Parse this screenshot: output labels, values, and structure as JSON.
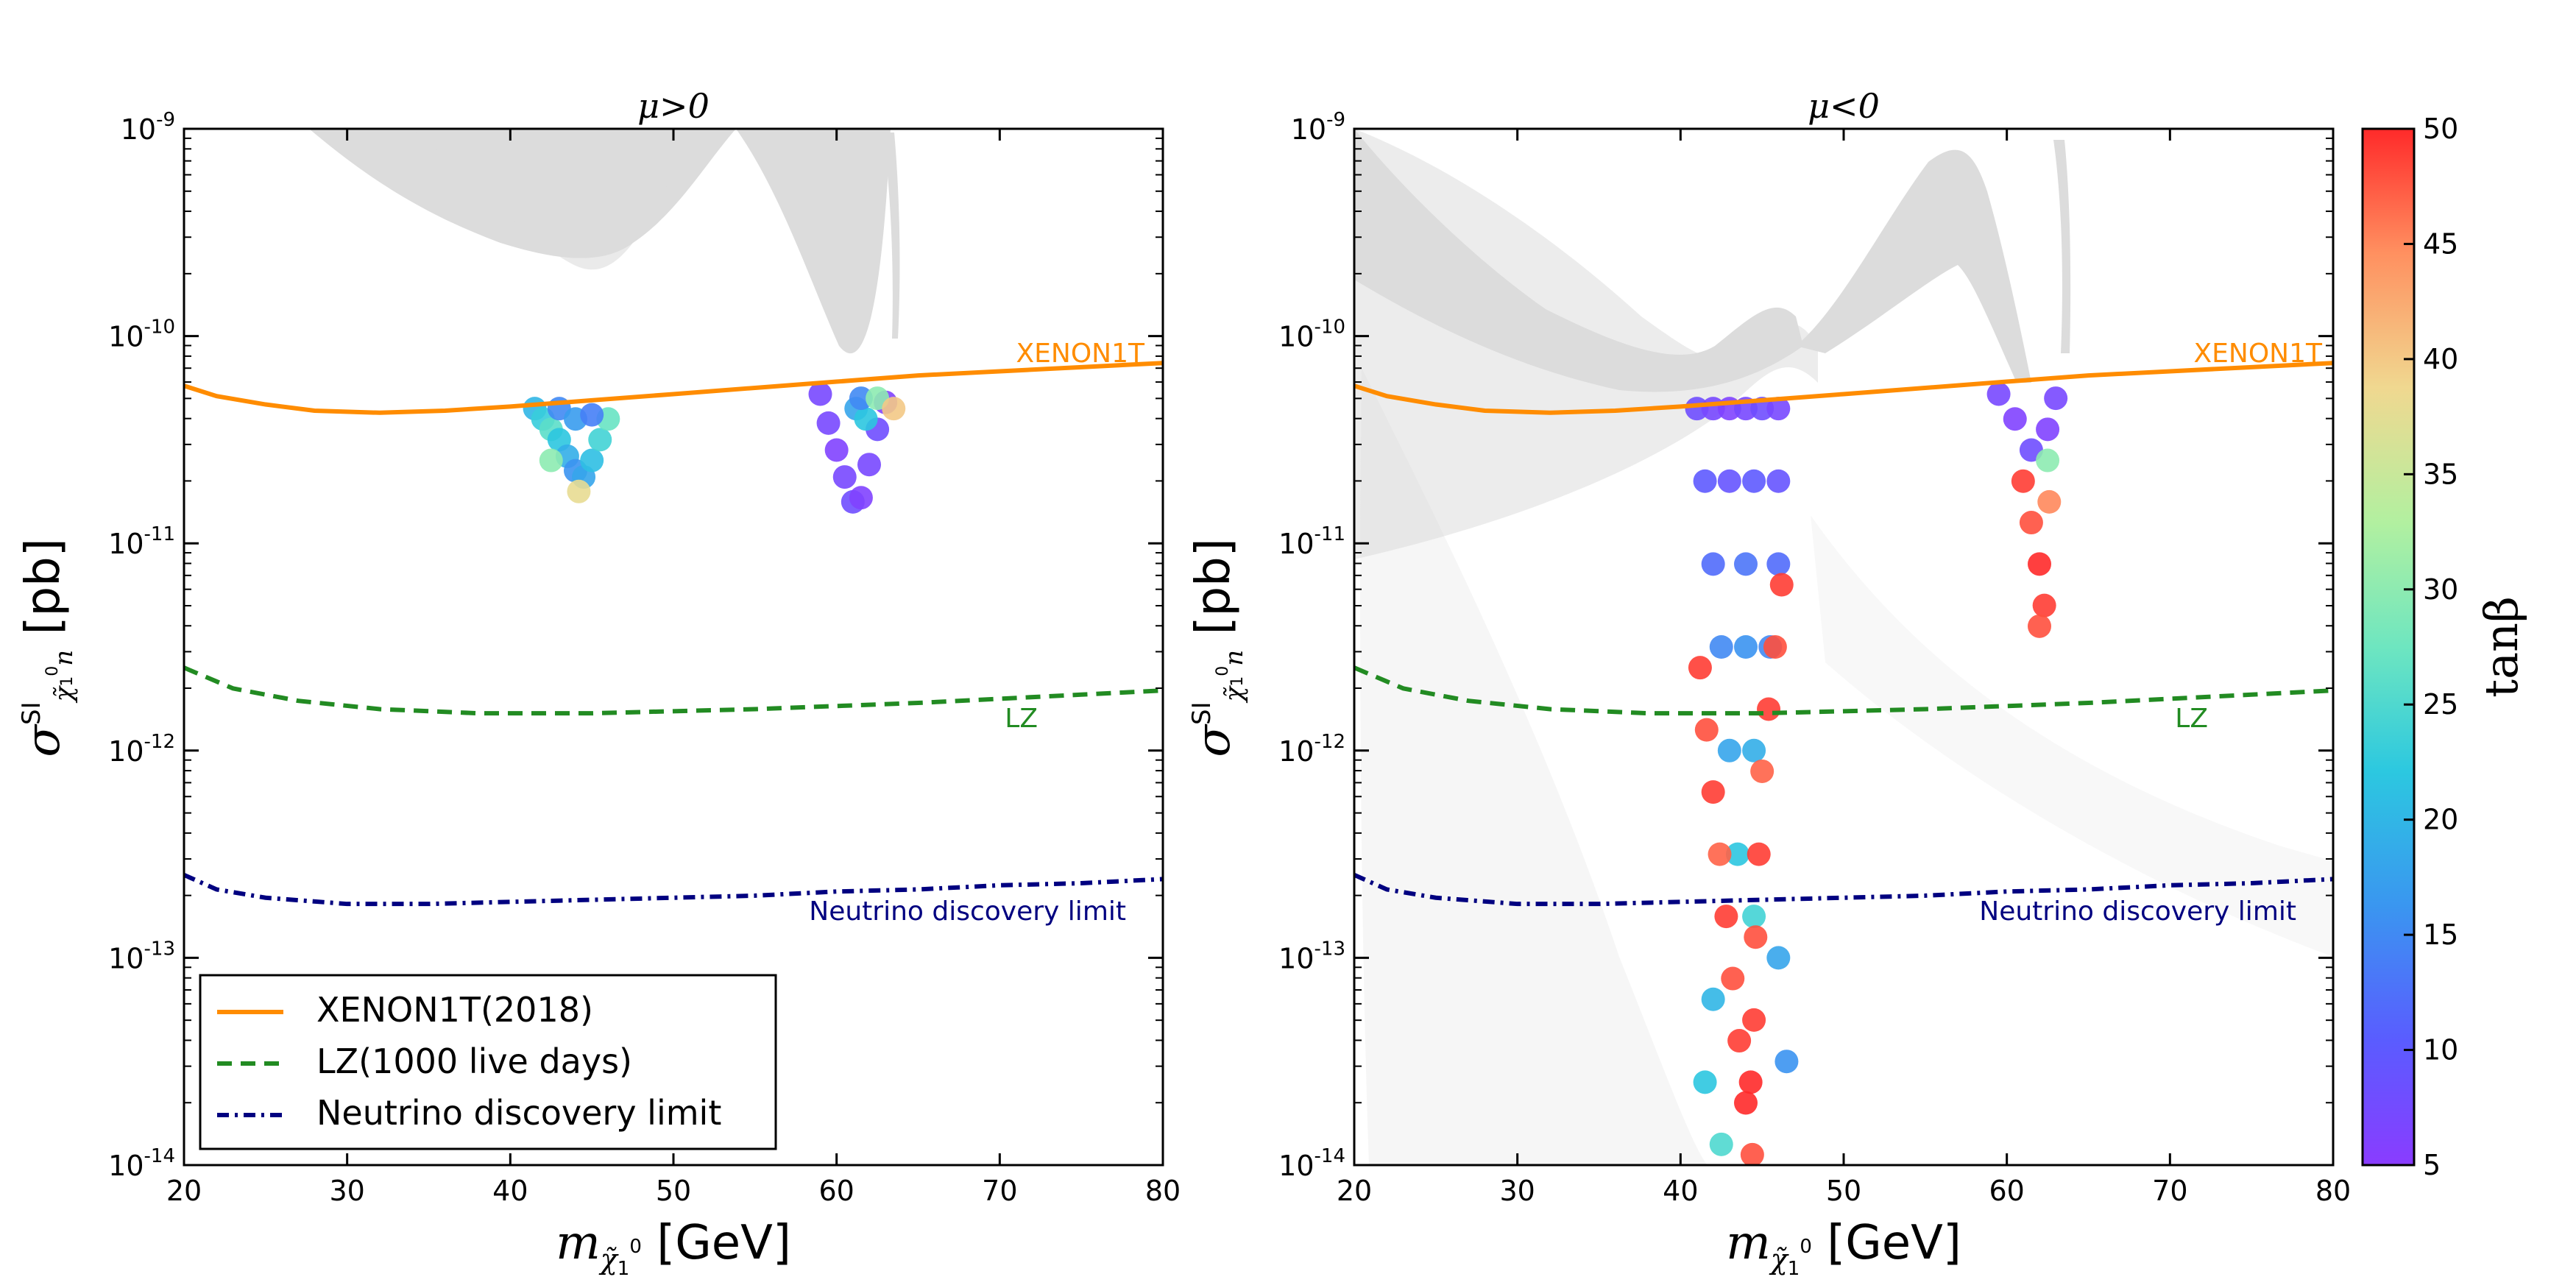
{
  "chart_data": [
    {
      "type": "scatter",
      "title": "μ>0",
      "xlabel": "m_χ̃₁⁰ [GeV]",
      "ylabel": "σ^SI_χ̃₁⁰n [pb]",
      "xlim": [
        20,
        80
      ],
      "ylim_log10": [
        -14,
        -9
      ],
      "x_ticks": [
        "20",
        "30",
        "40",
        "50",
        "60",
        "70",
        "80"
      ],
      "y_ticks": [
        {
          "exp": "-14"
        },
        {
          "exp": "-13"
        },
        {
          "exp": "-12"
        },
        {
          "exp": "-11"
        },
        {
          "exp": "-10"
        },
        {
          "exp": "-9"
        }
      ],
      "limit_curves": [
        {
          "name": "XENON1T(2018)",
          "label": "XENON1T",
          "style": "solid",
          "color": "#ff8c00",
          "x": [
            20,
            22,
            25,
            28,
            32,
            36,
            40,
            45,
            50,
            55,
            60,
            65,
            70,
            75,
            80
          ],
          "log10y": [
            -10.24,
            -10.29,
            -10.33,
            -10.36,
            -10.37,
            -10.36,
            -10.34,
            -10.31,
            -10.28,
            -10.25,
            -10.22,
            -10.19,
            -10.17,
            -10.15,
            -10.13
          ]
        },
        {
          "name": "LZ(1000 live days)",
          "label": "LZ",
          "style": "dashed",
          "color": "#228b22",
          "x": [
            20,
            23,
            27,
            32,
            38,
            45,
            55,
            65,
            75,
            80
          ],
          "log10y": [
            -11.6,
            -11.7,
            -11.76,
            -11.8,
            -11.82,
            -11.82,
            -11.8,
            -11.77,
            -11.73,
            -11.71
          ]
        },
        {
          "name": "Neutrino discovery limit",
          "label": "Neutrino discovery limit",
          "style": "dashdot",
          "color": "#000080",
          "x": [
            20,
            22,
            25,
            30,
            35,
            40,
            45,
            50,
            55,
            60,
            65,
            70,
            75,
            80
          ],
          "log10y": [
            -12.6,
            -12.67,
            -12.71,
            -12.74,
            -12.74,
            -12.73,
            -12.72,
            -12.71,
            -12.7,
            -12.68,
            -12.67,
            -12.65,
            -12.64,
            -12.62
          ]
        }
      ],
      "points": [
        {
          "x": 41.5,
          "log10y": -10.35,
          "tanb": 20
        },
        {
          "x": 42,
          "log10y": -10.4,
          "tanb": 23
        },
        {
          "x": 42.5,
          "log10y": -10.45,
          "tanb": 26
        },
        {
          "x": 43,
          "log10y": -10.5,
          "tanb": 22
        },
        {
          "x": 43.5,
          "log10y": -10.58,
          "tanb": 19
        },
        {
          "x": 44,
          "log10y": -10.65,
          "tanb": 16
        },
        {
          "x": 44.5,
          "log10y": -10.68,
          "tanb": 18
        },
        {
          "x": 45,
          "log10y": -10.6,
          "tanb": 21
        },
        {
          "x": 45.5,
          "log10y": -10.5,
          "tanb": 24
        },
        {
          "x": 46,
          "log10y": -10.4,
          "tanb": 27
        },
        {
          "x": 43,
          "log10y": -10.35,
          "tanb": 15
        },
        {
          "x": 44,
          "log10y": -10.4,
          "tanb": 17
        },
        {
          "x": 45,
          "log10y": -10.38,
          "tanb": 14
        },
        {
          "x": 42.5,
          "log10y": -10.6,
          "tanb": 30
        },
        {
          "x": 44.2,
          "log10y": -10.75,
          "tanb": 38
        },
        {
          "x": 59,
          "log10y": -10.28,
          "tanb": 7
        },
        {
          "x": 59.5,
          "log10y": -10.42,
          "tanb": 7
        },
        {
          "x": 60,
          "log10y": -10.55,
          "tanb": 6
        },
        {
          "x": 60.5,
          "log10y": -10.68,
          "tanb": 7
        },
        {
          "x": 61,
          "log10y": -10.8,
          "tanb": 8
        },
        {
          "x": 61.5,
          "log10y": -10.78,
          "tanb": 6
        },
        {
          "x": 62,
          "log10y": -10.62,
          "tanb": 7
        },
        {
          "x": 62.5,
          "log10y": -10.45,
          "tanb": 8
        },
        {
          "x": 63,
          "log10y": -10.32,
          "tanb": 6
        },
        {
          "x": 61.2,
          "log10y": -10.35,
          "tanb": 18
        },
        {
          "x": 61.8,
          "log10y": -10.4,
          "tanb": 22
        },
        {
          "x": 61.5,
          "log10y": -10.3,
          "tanb": 15
        },
        {
          "x": 62.5,
          "log10y": -10.3,
          "tanb": 30
        },
        {
          "x": 63.5,
          "log10y": -10.35,
          "tanb": 40
        }
      ]
    },
    {
      "type": "scatter",
      "title": "μ<0",
      "xlabel": "m_χ̃₁⁰ [GeV]",
      "ylabel": "σ^SI_χ̃₁⁰n [pb]",
      "xlim": [
        20,
        80
      ],
      "ylim_log10": [
        -14,
        -9
      ],
      "x_ticks": [
        "20",
        "30",
        "40",
        "50",
        "60",
        "70",
        "80"
      ],
      "y_ticks": [
        {
          "exp": "-14"
        },
        {
          "exp": "-13"
        },
        {
          "exp": "-12"
        },
        {
          "exp": "-11"
        },
        {
          "exp": "-10"
        },
        {
          "exp": "-9"
        }
      ],
      "limit_curves": [
        {
          "name": "XENON1T(2018)",
          "label": "XENON1T",
          "style": "solid",
          "color": "#ff8c00",
          "x": [
            20,
            22,
            25,
            28,
            32,
            36,
            40,
            45,
            50,
            55,
            60,
            65,
            70,
            75,
            80
          ],
          "log10y": [
            -10.24,
            -10.29,
            -10.33,
            -10.36,
            -10.37,
            -10.36,
            -10.34,
            -10.31,
            -10.28,
            -10.25,
            -10.22,
            -10.19,
            -10.17,
            -10.15,
            -10.13
          ]
        },
        {
          "name": "LZ(1000 live days)",
          "label": "LZ",
          "style": "dashed",
          "color": "#228b22",
          "x": [
            20,
            23,
            27,
            32,
            38,
            45,
            55,
            65,
            75,
            80
          ],
          "log10y": [
            -11.6,
            -11.7,
            -11.76,
            -11.8,
            -11.82,
            -11.82,
            -11.8,
            -11.77,
            -11.73,
            -11.71
          ]
        },
        {
          "name": "Neutrino discovery limit",
          "label": "Neutrino discovery limit",
          "style": "dashdot",
          "color": "#000080",
          "x": [
            20,
            22,
            25,
            30,
            35,
            40,
            45,
            50,
            55,
            60,
            65,
            70,
            75,
            80
          ],
          "log10y": [
            -12.6,
            -12.67,
            -12.71,
            -12.74,
            -12.74,
            -12.73,
            -12.72,
            -12.71,
            -12.7,
            -12.68,
            -12.67,
            -12.65,
            -12.64,
            -12.62
          ]
        }
      ],
      "points": [
        {
          "x": 41,
          "log10y": -10.35,
          "tanb": 8
        },
        {
          "x": 42,
          "log10y": -10.35,
          "tanb": 7
        },
        {
          "x": 43,
          "log10y": -10.35,
          "tanb": 6
        },
        {
          "x": 44,
          "log10y": -10.35,
          "tanb": 7
        },
        {
          "x": 45,
          "log10y": -10.35,
          "tanb": 8
        },
        {
          "x": 46,
          "log10y": -10.35,
          "tanb": 7
        },
        {
          "x": 41.5,
          "log10y": -10.7,
          "tanb": 10
        },
        {
          "x": 43,
          "log10y": -10.7,
          "tanb": 9
        },
        {
          "x": 44.5,
          "log10y": -10.7,
          "tanb": 10
        },
        {
          "x": 46,
          "log10y": -10.7,
          "tanb": 9
        },
        {
          "x": 42,
          "log10y": -11.1,
          "tanb": 12
        },
        {
          "x": 44,
          "log10y": -11.1,
          "tanb": 13
        },
        {
          "x": 46,
          "log10y": -11.1,
          "tanb": 12
        },
        {
          "x": 42.5,
          "log10y": -11.5,
          "tanb": 15
        },
        {
          "x": 44,
          "log10y": -11.5,
          "tanb": 16
        },
        {
          "x": 45.5,
          "log10y": -11.5,
          "tanb": 15
        },
        {
          "x": 43,
          "log10y": -12.0,
          "tanb": 18
        },
        {
          "x": 44.5,
          "log10y": -12.0,
          "tanb": 19
        },
        {
          "x": 43.5,
          "log10y": -12.5,
          "tanb": 22
        },
        {
          "x": 44.5,
          "log10y": -12.8,
          "tanb": 24
        },
        {
          "x": 41.2,
          "log10y": -11.6,
          "tanb": 49
        },
        {
          "x": 41.6,
          "log10y": -11.9,
          "tanb": 48
        },
        {
          "x": 42,
          "log10y": -12.2,
          "tanb": 49
        },
        {
          "x": 42.4,
          "log10y": -12.5,
          "tanb": 47
        },
        {
          "x": 42.8,
          "log10y": -12.8,
          "tanb": 49
        },
        {
          "x": 43.2,
          "log10y": -13.1,
          "tanb": 48
        },
        {
          "x": 43.6,
          "log10y": -13.4,
          "tanb": 49
        },
        {
          "x": 44,
          "log10y": -13.7,
          "tanb": 50
        },
        {
          "x": 44.4,
          "log10y": -13.95,
          "tanb": 48
        },
        {
          "x": 46.2,
          "log10y": -11.2,
          "tanb": 49
        },
        {
          "x": 45.8,
          "log10y": -11.5,
          "tanb": 48
        },
        {
          "x": 45.4,
          "log10y": -11.8,
          "tanb": 49
        },
        {
          "x": 45.0,
          "log10y": -12.1,
          "tanb": 47
        },
        {
          "x": 44.8,
          "log10y": -12.5,
          "tanb": 49
        },
        {
          "x": 44.6,
          "log10y": -12.9,
          "tanb": 48
        },
        {
          "x": 44.5,
          "log10y": -13.3,
          "tanb": 49
        },
        {
          "x": 44.3,
          "log10y": -13.6,
          "tanb": 50
        },
        {
          "x": 42,
          "log10y": -13.2,
          "tanb": 20
        },
        {
          "x": 46,
          "log10y": -13.0,
          "tanb": 18
        },
        {
          "x": 41.5,
          "log10y": -13.6,
          "tanb": 22
        },
        {
          "x": 46.5,
          "log10y": -13.5,
          "tanb": 16
        },
        {
          "x": 42.5,
          "log10y": -13.9,
          "tanb": 25
        },
        {
          "x": 59.5,
          "log10y": -10.28,
          "tanb": 7
        },
        {
          "x": 60.5,
          "log10y": -10.4,
          "tanb": 6
        },
        {
          "x": 61.5,
          "log10y": -10.55,
          "tanb": 8
        },
        {
          "x": 62.5,
          "log10y": -10.45,
          "tanb": 6
        },
        {
          "x": 63,
          "log10y": -10.3,
          "tanb": 7
        },
        {
          "x": 61,
          "log10y": -10.7,
          "tanb": 49
        },
        {
          "x": 61.5,
          "log10y": -10.9,
          "tanb": 48
        },
        {
          "x": 62,
          "log10y": -11.1,
          "tanb": 50
        },
        {
          "x": 62.3,
          "log10y": -11.3,
          "tanb": 49
        },
        {
          "x": 62.6,
          "log10y": -10.8,
          "tanb": 45
        },
        {
          "x": 62.5,
          "log10y": -10.6,
          "tanb": 30
        },
        {
          "x": 62,
          "log10y": -11.4,
          "tanb": 48
        }
      ]
    }
  ],
  "legend": {
    "placement": "lower-left",
    "entries": [
      "XENON1T(2018)",
      "LZ(1000 live days)",
      "Neutrino discovery limit"
    ]
  },
  "colorbar": {
    "label": "tanβ",
    "min": 5,
    "max": 50,
    "ticks": [
      "5",
      "10",
      "15",
      "20",
      "25",
      "30",
      "35",
      "40",
      "45",
      "50"
    ]
  },
  "colors": {
    "xenon": "#ff8c00",
    "lz": "#228b22",
    "neutrino": "#000080",
    "background_scan": "#d0d0d0"
  }
}
